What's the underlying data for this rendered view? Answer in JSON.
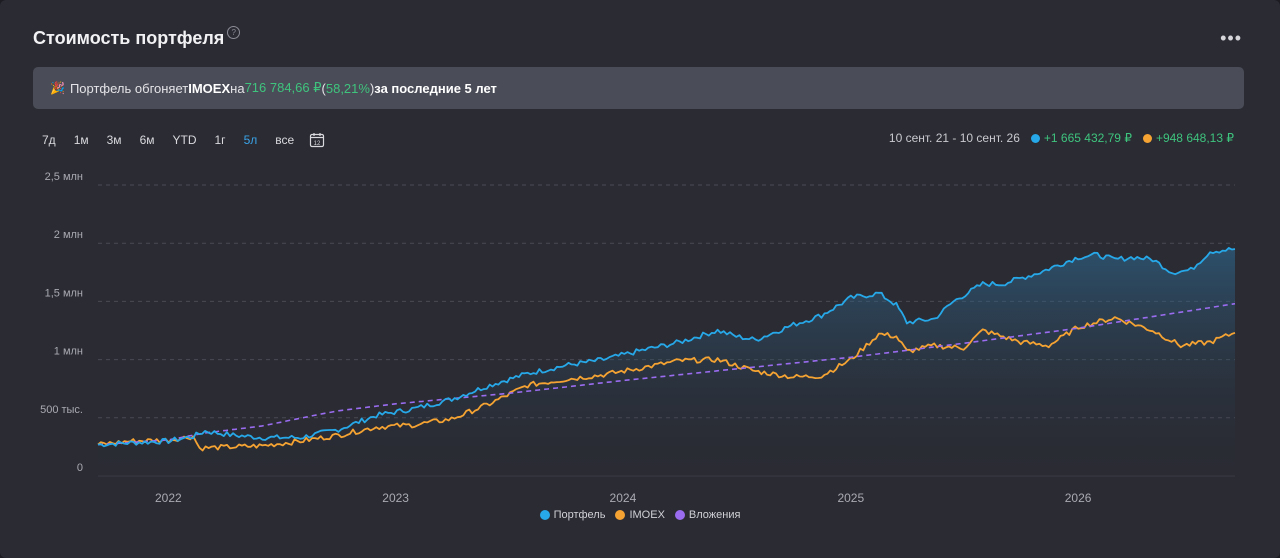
{
  "header": {
    "title": "Стоимость портфеля",
    "help_icon": "question-circle-icon",
    "more_icon": "more-dots-icon",
    "more_symbol": "•••"
  },
  "banner": {
    "emoji": "🎉",
    "text_1": "Портфель обгоняет ",
    "index": "IMOEX",
    "text_2": " на ",
    "diff_value": "716 784,66 ₽",
    "open_paren": " (",
    "diff_percent": "58,21%",
    "close_paren": ")",
    "text_3": " за последние 5 лет"
  },
  "periods": {
    "items": [
      "7д",
      "1м",
      "3м",
      "6м",
      "YTD",
      "1г",
      "5л",
      "все"
    ],
    "active": "5л",
    "calendar_icon": "calendar-icon",
    "calendar_label": "12"
  },
  "range": {
    "dates": "10 сент. 21 - 10 сент. 26",
    "portfolio_change": "+1 665 432,79 ₽",
    "imoex_change": "+948 648,13 ₽"
  },
  "colors": {
    "portfolio": "#27a8e8",
    "imoex": "#f5a332",
    "invested": "#9a6cf0",
    "grid": "#4a4b55",
    "positive": "#3fc47e"
  },
  "chart_data": {
    "type": "line",
    "x_start": "2021-09-10",
    "x_end": "2026-09-10",
    "x_ticks": [
      {
        "date": "2022-01-01",
        "label": "2022"
      },
      {
        "date": "2023-01-01",
        "label": "2023"
      },
      {
        "date": "2024-01-01",
        "label": "2024"
      },
      {
        "date": "2025-01-01",
        "label": "2025"
      },
      {
        "date": "2026-01-01",
        "label": "2026"
      }
    ],
    "y_ticks": [
      {
        "value": 0,
        "label": "0"
      },
      {
        "value": 500000,
        "label": "500 тыс."
      },
      {
        "value": 1000000,
        "label": "1 млн"
      },
      {
        "value": 1500000,
        "label": "1,5 млн"
      },
      {
        "value": 2000000,
        "label": "2 млн"
      },
      {
        "value": 2500000,
        "label": "2,5 млн"
      }
    ],
    "ylim": [
      0,
      2500000
    ],
    "grid": true,
    "legend_position": "bottom",
    "series": [
      {
        "name": "Портфель",
        "style": "solid-area",
        "points": [
          [
            "2021-09-10",
            270000
          ],
          [
            "2021-11-01",
            285000
          ],
          [
            "2022-01-01",
            300000
          ],
          [
            "2022-02-10",
            340000
          ],
          [
            "2022-03-01",
            385000
          ],
          [
            "2022-04-15",
            350000
          ],
          [
            "2022-06-01",
            330000
          ],
          [
            "2022-08-01",
            330000
          ],
          [
            "2022-10-01",
            400000
          ],
          [
            "2022-12-01",
            520000
          ],
          [
            "2023-02-01",
            580000
          ],
          [
            "2023-04-01",
            660000
          ],
          [
            "2023-06-01",
            780000
          ],
          [
            "2023-08-01",
            880000
          ],
          [
            "2023-10-01",
            950000
          ],
          [
            "2023-12-01",
            1000000
          ],
          [
            "2024-02-01",
            1080000
          ],
          [
            "2024-04-01",
            1150000
          ],
          [
            "2024-06-01",
            1250000
          ],
          [
            "2024-07-01",
            1200000
          ],
          [
            "2024-08-01",
            1170000
          ],
          [
            "2024-10-01",
            1300000
          ],
          [
            "2024-11-15",
            1380000
          ],
          [
            "2025-01-01",
            1530000
          ],
          [
            "2025-02-15",
            1570000
          ],
          [
            "2025-03-15",
            1470000
          ],
          [
            "2025-04-01",
            1320000
          ],
          [
            "2025-05-15",
            1350000
          ],
          [
            "2025-06-15",
            1500000
          ],
          [
            "2025-08-01",
            1650000
          ],
          [
            "2025-09-01",
            1650000
          ],
          [
            "2025-11-01",
            1750000
          ],
          [
            "2026-01-01",
            1880000
          ],
          [
            "2026-02-01",
            1900000
          ],
          [
            "2026-03-01",
            1860000
          ],
          [
            "2026-04-01",
            1880000
          ],
          [
            "2026-05-01",
            1860000
          ],
          [
            "2026-06-01",
            1750000
          ],
          [
            "2026-07-01",
            1770000
          ],
          [
            "2026-08-01",
            1930000
          ],
          [
            "2026-09-10",
            1950000
          ]
        ]
      },
      {
        "name": "IMOEX",
        "style": "solid",
        "points": [
          [
            "2021-09-10",
            270000
          ],
          [
            "2021-11-01",
            300000
          ],
          [
            "2022-01-01",
            310000
          ],
          [
            "2022-02-10",
            340000
          ],
          [
            "2022-02-20",
            240000
          ],
          [
            "2022-04-15",
            250000
          ],
          [
            "2022-06-01",
            260000
          ],
          [
            "2022-08-01",
            300000
          ],
          [
            "2022-10-01",
            350000
          ],
          [
            "2022-12-01",
            420000
          ],
          [
            "2023-02-01",
            440000
          ],
          [
            "2023-04-01",
            490000
          ],
          [
            "2023-06-01",
            620000
          ],
          [
            "2023-08-01",
            780000
          ],
          [
            "2023-10-01",
            830000
          ],
          [
            "2023-12-01",
            870000
          ],
          [
            "2024-02-01",
            930000
          ],
          [
            "2024-04-01",
            990000
          ],
          [
            "2024-06-01",
            1000000
          ],
          [
            "2024-08-01",
            900000
          ],
          [
            "2024-10-01",
            850000
          ],
          [
            "2024-11-15",
            860000
          ],
          [
            "2025-01-01",
            1000000
          ],
          [
            "2025-02-15",
            1220000
          ],
          [
            "2025-03-15",
            1200000
          ],
          [
            "2025-04-01",
            1070000
          ],
          [
            "2025-05-15",
            1120000
          ],
          [
            "2025-07-01",
            1100000
          ],
          [
            "2025-08-01",
            1250000
          ],
          [
            "2025-10-01",
            1150000
          ],
          [
            "2025-11-15",
            1120000
          ],
          [
            "2026-01-01",
            1280000
          ],
          [
            "2026-03-01",
            1360000
          ],
          [
            "2026-05-01",
            1250000
          ],
          [
            "2026-06-15",
            1120000
          ],
          [
            "2026-08-01",
            1150000
          ],
          [
            "2026-09-10",
            1230000
          ]
        ]
      },
      {
        "name": "Вложения",
        "style": "dashed",
        "points": [
          [
            "2021-09-10",
            270000
          ],
          [
            "2022-01-01",
            310000
          ],
          [
            "2022-03-01",
            370000
          ],
          [
            "2022-06-01",
            430000
          ],
          [
            "2022-09-01",
            530000
          ],
          [
            "2022-10-01",
            560000
          ],
          [
            "2023-01-01",
            620000
          ],
          [
            "2023-07-01",
            710000
          ],
          [
            "2024-01-01",
            820000
          ],
          [
            "2024-07-01",
            920000
          ],
          [
            "2025-01-01",
            1020000
          ],
          [
            "2025-07-01",
            1140000
          ],
          [
            "2026-01-01",
            1270000
          ],
          [
            "2026-09-10",
            1480000
          ]
        ]
      }
    ]
  }
}
